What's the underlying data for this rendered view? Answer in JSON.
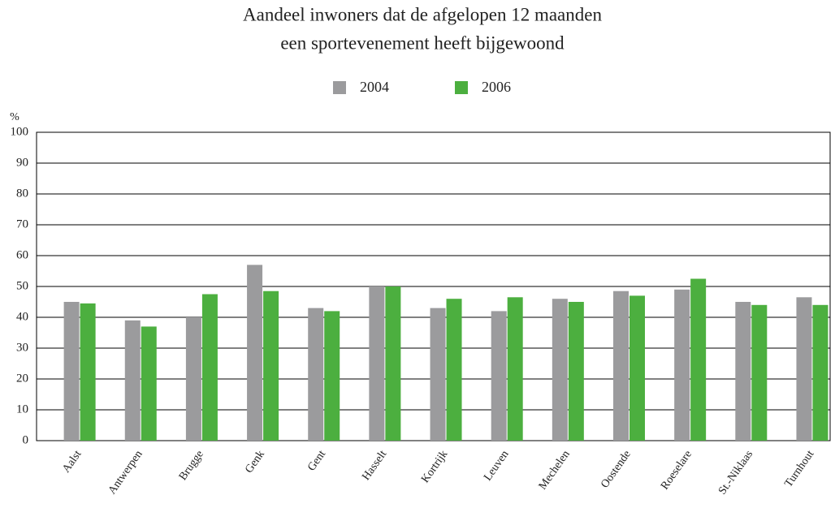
{
  "chart_data": {
    "type": "bar",
    "title": [
      "Aandeel inwoners dat de afgelopen 12 maanden",
      "een sportevenement heeft bijgewoond"
    ],
    "ylabel": "%",
    "categories": [
      "Aalst",
      "Antwerpen",
      "Brugge",
      "Genk",
      "Gent",
      "Hasselt",
      "Kortrijk",
      "Leuven",
      "Mechelen",
      "Oostende",
      "Roeselare",
      "St.-Niklaas",
      "Turnhout"
    ],
    "series": [
      {
        "name": "2004",
        "color": "#9b9b9d",
        "values": [
          45,
          39,
          40,
          57,
          43,
          50,
          43,
          42,
          46,
          48.5,
          49,
          45,
          46.5
        ]
      },
      {
        "name": "2006",
        "color": "#4caf3f",
        "values": [
          44.5,
          37,
          47.5,
          48.5,
          42,
          50,
          46,
          46.5,
          45,
          47,
          52.5,
          44,
          44
        ]
      }
    ],
    "ylim": [
      0,
      100
    ],
    "yticks": [
      0,
      10,
      20,
      30,
      40,
      50,
      60,
      70,
      80,
      90,
      100
    ],
    "grid": true,
    "legend": "top"
  }
}
